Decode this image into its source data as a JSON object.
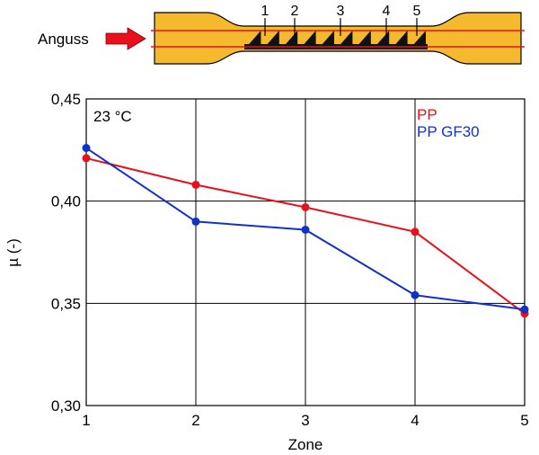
{
  "diagram": {
    "sprue_label": "Anguss",
    "zone_labels": [
      "1",
      "2",
      "3",
      "4",
      "5"
    ],
    "colors": {
      "specimen_fill": "#f5b92e",
      "specimen_stroke": "#000000",
      "flow_line": "#e8101a",
      "arrow": "#e8101a",
      "marks": "#111111"
    }
  },
  "chart_data": {
    "type": "line",
    "categories": [
      "1",
      "2",
      "3",
      "4",
      "5"
    ],
    "x": [
      1,
      2,
      3,
      4,
      5
    ],
    "xlabel": "Zone",
    "ylabel": "µ (-)",
    "ylim": [
      0.3,
      0.45
    ],
    "yticks": [
      "0,30",
      "0,35",
      "0,40",
      "0,45"
    ],
    "ytick_values": [
      0.3,
      0.35,
      0.4,
      0.45
    ],
    "grid": true,
    "annotation": "23 °C",
    "legend_position": "top-right",
    "series": [
      {
        "name": "PP",
        "color": "#e8101a",
        "values": [
          0.421,
          0.408,
          0.397,
          0.385,
          0.345
        ]
      },
      {
        "name": "PP GF30",
        "color": "#1032c8",
        "values": [
          0.426,
          0.39,
          0.386,
          0.354,
          0.347
        ]
      }
    ]
  }
}
